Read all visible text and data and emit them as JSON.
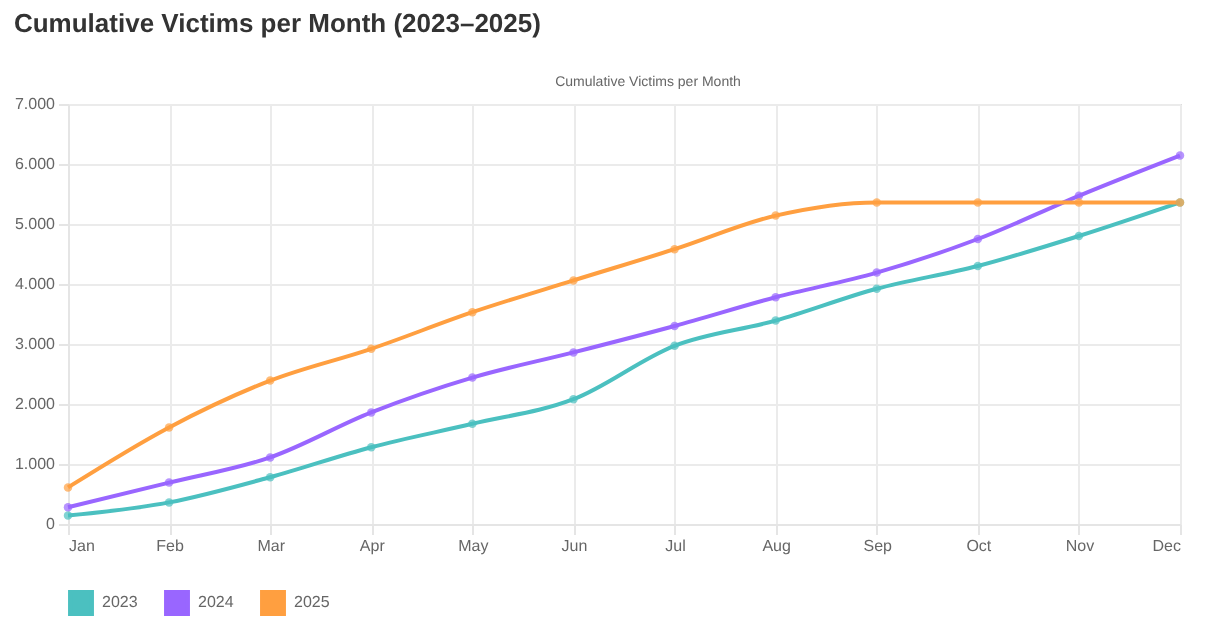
{
  "chart_data": {
    "type": "line",
    "title": "Cumulative Victims per Month (2023–2025)",
    "annotations": [
      "Cumulative Victims per Month"
    ],
    "categories": [
      "Jan",
      "Feb",
      "Mar",
      "Apr",
      "May",
      "Jun",
      "Jul",
      "Aug",
      "Sep",
      "Oct",
      "Nov",
      "Dec"
    ],
    "series": [
      {
        "name": "2023",
        "color": "#4bc0c0",
        "values": [
          140,
          360,
          780,
          1280,
          1670,
          2080,
          2970,
          3390,
          3920,
          4300,
          4800,
          5360
        ]
      },
      {
        "name": "2024",
        "color": "#9966ff",
        "values": [
          280,
          690,
          1110,
          1860,
          2440,
          2860,
          3300,
          3780,
          4190,
          4750,
          5470,
          6140
        ]
      },
      {
        "name": "2025",
        "color": "#ff9f40",
        "values": [
          610,
          1610,
          2390,
          2920,
          3530,
          4060,
          4580,
          5140,
          5360,
          5360,
          5360,
          5360
        ]
      }
    ],
    "ylim": [
      0,
      7000
    ],
    "yticks": [
      {
        "value": 0,
        "label": "0"
      },
      {
        "value": 1000,
        "label": "1.000"
      },
      {
        "value": 2000,
        "label": "2.000"
      },
      {
        "value": 3000,
        "label": "3.000"
      },
      {
        "value": 4000,
        "label": "4.000"
      },
      {
        "value": 5000,
        "label": "5.000"
      },
      {
        "value": 6000,
        "label": "6.000"
      },
      {
        "value": 7000,
        "label": "7.000"
      }
    ],
    "grid": true,
    "legend": "bottom",
    "marker": "circle",
    "line_style": "solid"
  }
}
